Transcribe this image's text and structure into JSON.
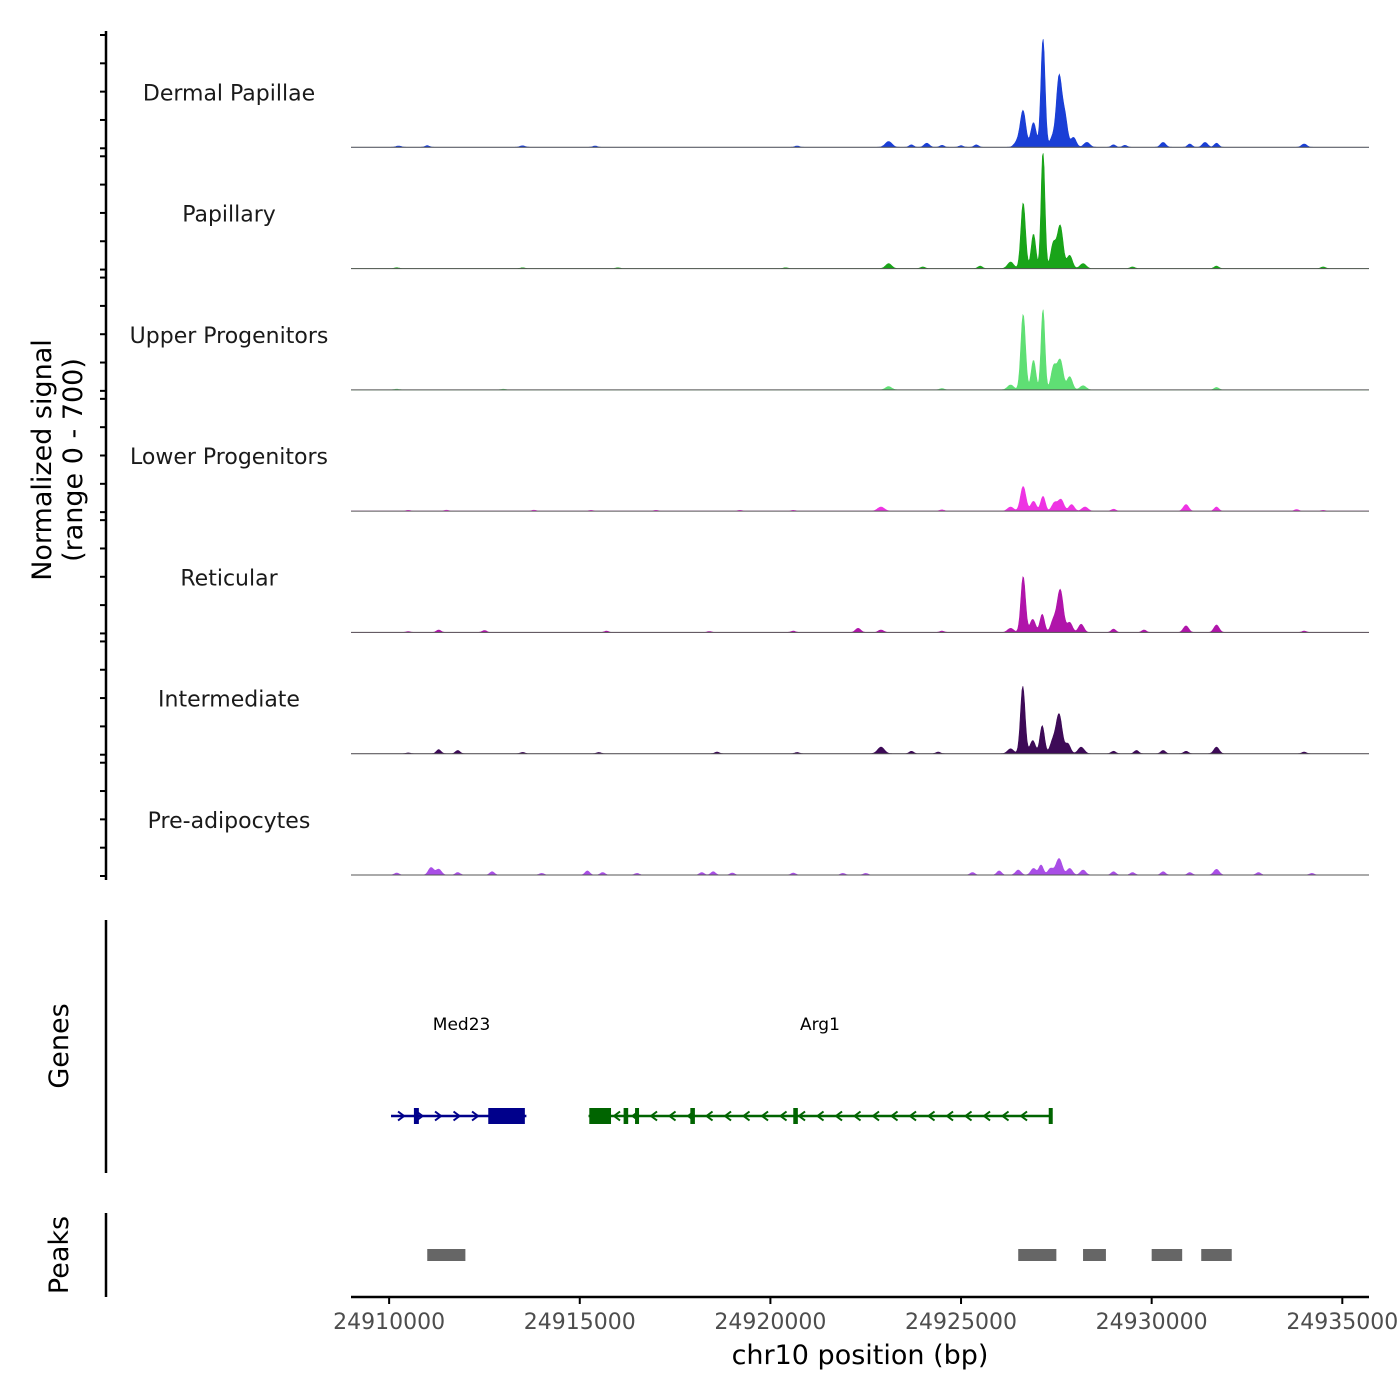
{
  "chart_data": {
    "type": "area",
    "title": "",
    "ylabel_line1": "Normalized signal",
    "ylabel_line2": "(range 0 - 700)",
    "yrange": [
      0,
      700
    ],
    "xlabel": "chr10 position (bp)",
    "xlim": [
      24909000,
      24935700
    ],
    "xticks": [
      24910000,
      24915000,
      24920000,
      24925000,
      24930000,
      24935000
    ],
    "xtick_labels": [
      "24910000",
      "24915000",
      "24920000",
      "24925000",
      "24930000",
      "24935000"
    ],
    "genes_label": "Genes",
    "peaks_label": "Peaks",
    "series": [
      {
        "name": "Dermal Papillae",
        "color": "#1a3fd6",
        "peaks": [
          [
            24910250,
            8,
            70
          ],
          [
            24911000,
            10,
            60
          ],
          [
            24913500,
            9,
            70
          ],
          [
            24915400,
            8,
            60
          ],
          [
            24920700,
            8,
            60
          ],
          [
            24923100,
            35,
            90
          ],
          [
            24923700,
            15,
            60
          ],
          [
            24924100,
            25,
            70
          ],
          [
            24924500,
            12,
            60
          ],
          [
            24925000,
            10,
            60
          ],
          [
            24925400,
            15,
            60
          ],
          [
            24926500,
            40,
            90
          ],
          [
            24926630,
            210,
            70
          ],
          [
            24926900,
            150,
            70
          ],
          [
            24927150,
            660,
            55
          ],
          [
            24927400,
            60,
            70
          ],
          [
            24927570,
            420,
            70
          ],
          [
            24927720,
            190,
            70
          ],
          [
            24927950,
            60,
            70
          ],
          [
            24928300,
            30,
            80
          ],
          [
            24929000,
            15,
            60
          ],
          [
            24929300,
            12,
            60
          ],
          [
            24930300,
            30,
            70
          ],
          [
            24931000,
            20,
            60
          ],
          [
            24931400,
            30,
            70
          ],
          [
            24931700,
            25,
            60
          ],
          [
            24934000,
            20,
            70
          ]
        ]
      },
      {
        "name": "Papillary",
        "color": "#19a419",
        "peaks": [
          [
            24910200,
            5,
            60
          ],
          [
            24913500,
            5,
            60
          ],
          [
            24916000,
            5,
            60
          ],
          [
            24920400,
            5,
            60
          ],
          [
            24923100,
            30,
            80
          ],
          [
            24924000,
            10,
            60
          ],
          [
            24925500,
            15,
            60
          ],
          [
            24926300,
            40,
            80
          ],
          [
            24926630,
            400,
            60
          ],
          [
            24926900,
            210,
            60
          ],
          [
            24927150,
            720,
            50
          ],
          [
            24927420,
            150,
            70
          ],
          [
            24927600,
            260,
            75
          ],
          [
            24927850,
            80,
            70
          ],
          [
            24928200,
            30,
            80
          ],
          [
            24929500,
            10,
            60
          ],
          [
            24931700,
            15,
            60
          ],
          [
            24934500,
            10,
            60
          ]
        ]
      },
      {
        "name": "Upper Progenitors",
        "color": "#5fdf74",
        "peaks": [
          [
            24910200,
            4,
            60
          ],
          [
            24913000,
            4,
            60
          ],
          [
            24923100,
            20,
            80
          ],
          [
            24924500,
            8,
            60
          ],
          [
            24926300,
            30,
            80
          ],
          [
            24926630,
            460,
            60
          ],
          [
            24926900,
            180,
            60
          ],
          [
            24927150,
            490,
            50
          ],
          [
            24927430,
            140,
            70
          ],
          [
            24927600,
            180,
            75
          ],
          [
            24927850,
            80,
            70
          ],
          [
            24928200,
            25,
            80
          ],
          [
            24931700,
            15,
            60
          ]
        ]
      },
      {
        "name": "Lower Progenitors",
        "color": "#ee33e3",
        "peaks": [
          [
            24910500,
            5,
            60
          ],
          [
            24911500,
            6,
            60
          ],
          [
            24913800,
            6,
            60
          ],
          [
            24915300,
            5,
            60
          ],
          [
            24917000,
            5,
            60
          ],
          [
            24919200,
            5,
            60
          ],
          [
            24920600,
            5,
            60
          ],
          [
            24922900,
            25,
            90
          ],
          [
            24924500,
            8,
            60
          ],
          [
            24926300,
            25,
            80
          ],
          [
            24926630,
            150,
            70
          ],
          [
            24926900,
            60,
            70
          ],
          [
            24927150,
            90,
            60
          ],
          [
            24927450,
            50,
            70
          ],
          [
            24927620,
            70,
            75
          ],
          [
            24927900,
            40,
            70
          ],
          [
            24928250,
            25,
            80
          ],
          [
            24929000,
            12,
            60
          ],
          [
            24930900,
            40,
            70
          ],
          [
            24931700,
            25,
            60
          ],
          [
            24933800,
            10,
            60
          ],
          [
            24934500,
            5,
            60
          ]
        ]
      },
      {
        "name": "Reticular",
        "color": "#b014aa",
        "peaks": [
          [
            24910500,
            5,
            60
          ],
          [
            24911300,
            15,
            60
          ],
          [
            24912500,
            12,
            60
          ],
          [
            24915700,
            8,
            60
          ],
          [
            24918400,
            6,
            60
          ],
          [
            24920600,
            8,
            60
          ],
          [
            24922300,
            25,
            70
          ],
          [
            24922900,
            15,
            70
          ],
          [
            24924500,
            8,
            60
          ],
          [
            24926300,
            25,
            80
          ],
          [
            24926630,
            340,
            60
          ],
          [
            24926880,
            80,
            70
          ],
          [
            24927130,
            110,
            60
          ],
          [
            24927420,
            70,
            70
          ],
          [
            24927600,
            260,
            80
          ],
          [
            24927850,
            60,
            70
          ],
          [
            24928150,
            50,
            70
          ],
          [
            24929000,
            20,
            60
          ],
          [
            24929800,
            15,
            60
          ],
          [
            24930900,
            40,
            70
          ],
          [
            24931700,
            45,
            70
          ],
          [
            24934000,
            8,
            60
          ]
        ]
      },
      {
        "name": "Intermediate",
        "color": "#3d0a57",
        "peaks": [
          [
            24910500,
            5,
            60
          ],
          [
            24911300,
            25,
            60
          ],
          [
            24911800,
            20,
            60
          ],
          [
            24913500,
            8,
            60
          ],
          [
            24915500,
            8,
            60
          ],
          [
            24918600,
            10,
            60
          ],
          [
            24920700,
            8,
            60
          ],
          [
            24922900,
            40,
            90
          ],
          [
            24923700,
            15,
            60
          ],
          [
            24924400,
            10,
            60
          ],
          [
            24926300,
            30,
            80
          ],
          [
            24926620,
            410,
            60
          ],
          [
            24926880,
            80,
            70
          ],
          [
            24927130,
            170,
            60
          ],
          [
            24927400,
            70,
            70
          ],
          [
            24927570,
            240,
            80
          ],
          [
            24927800,
            60,
            70
          ],
          [
            24928150,
            40,
            80
          ],
          [
            24929000,
            15,
            60
          ],
          [
            24929600,
            20,
            60
          ],
          [
            24930300,
            20,
            60
          ],
          [
            24930900,
            15,
            60
          ],
          [
            24931700,
            40,
            70
          ],
          [
            24934000,
            10,
            60
          ]
        ]
      },
      {
        "name": "Pre-adipocytes",
        "color": "#a94ee6",
        "peaks": [
          [
            24910200,
            12,
            60
          ],
          [
            24911100,
            45,
            70
          ],
          [
            24911300,
            35,
            70
          ],
          [
            24911800,
            15,
            60
          ],
          [
            24912700,
            20,
            60
          ],
          [
            24914000,
            10,
            60
          ],
          [
            24915200,
            25,
            60
          ],
          [
            24915600,
            15,
            60
          ],
          [
            24916500,
            10,
            60
          ],
          [
            24918200,
            15,
            60
          ],
          [
            24918500,
            20,
            60
          ],
          [
            24919000,
            12,
            60
          ],
          [
            24920600,
            12,
            60
          ],
          [
            24921900,
            10,
            60
          ],
          [
            24922500,
            10,
            60
          ],
          [
            24925300,
            15,
            60
          ],
          [
            24926000,
            25,
            60
          ],
          [
            24926500,
            30,
            70
          ],
          [
            24926900,
            40,
            70
          ],
          [
            24927100,
            60,
            60
          ],
          [
            24927350,
            40,
            70
          ],
          [
            24927570,
            100,
            80
          ],
          [
            24927850,
            40,
            70
          ],
          [
            24928200,
            30,
            70
          ],
          [
            24929000,
            20,
            60
          ],
          [
            24929500,
            15,
            60
          ],
          [
            24930300,
            20,
            60
          ],
          [
            24931000,
            15,
            60
          ],
          [
            24931700,
            35,
            70
          ],
          [
            24932800,
            15,
            60
          ],
          [
            24934200,
            10,
            60
          ]
        ]
      }
    ],
    "genes": [
      {
        "name": "Med23",
        "color": "#00008b",
        "strand": "+",
        "start": 24910050,
        "end": 24913600,
        "label_x": 24911900,
        "exons": [
          [
            24910650,
            24910780
          ],
          [
            24912600,
            24913560
          ]
        ]
      },
      {
        "name": "Arg1",
        "color": "#006400",
        "strand": "-",
        "start": 24915230,
        "end": 24927370,
        "label_x": 24921300,
        "exons": [
          [
            24915250,
            24915820
          ],
          [
            24916150,
            24916270
          ],
          [
            24916450,
            24916520
          ],
          [
            24917900,
            24918020
          ],
          [
            24920600,
            24920720
          ],
          [
            24927300,
            24927370
          ]
        ]
      }
    ],
    "peak_regions": [
      [
        24911000,
        24912000
      ],
      [
        24926500,
        24927500
      ],
      [
        24928200,
        24928800
      ],
      [
        24930000,
        24930800
      ],
      [
        24931300,
        24932100
      ]
    ]
  }
}
